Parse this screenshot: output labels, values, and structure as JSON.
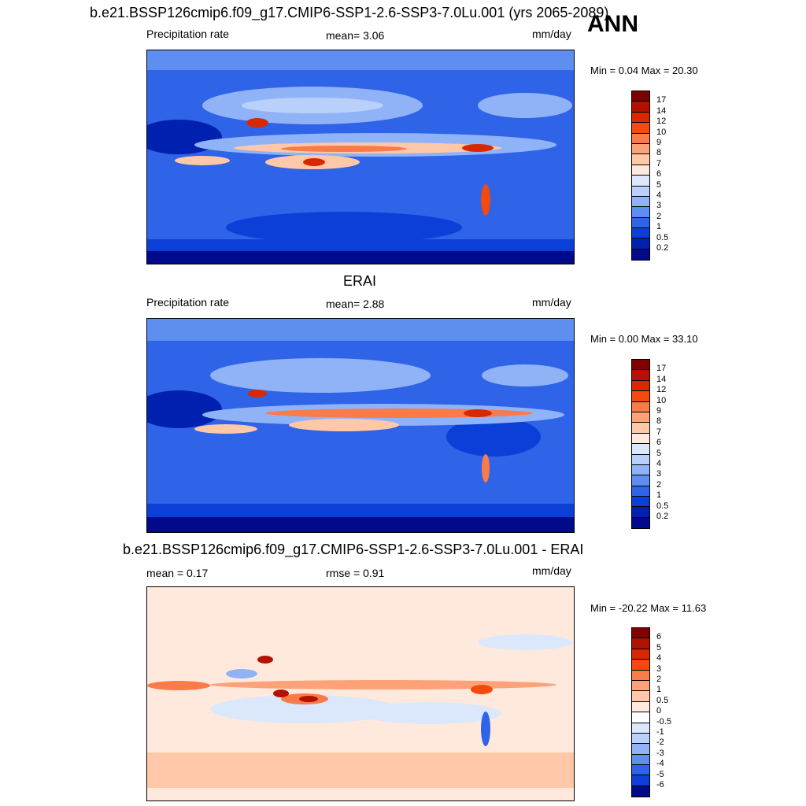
{
  "panel1": {
    "title": "b.e21.BSSP126cmip6.f09_g17.CMIP6-SSP1-2.6-SSP3-7.0Lu.001 (yrs 2065-2089)",
    "season": "ANN",
    "left": "Precipitation rate",
    "center": "mean=   3.06",
    "units": "mm/day",
    "minmax": "Min =   0.04 Max =  20.30"
  },
  "panel2": {
    "title": "ERAI",
    "left": "Precipitation rate",
    "center": "mean=   2.88",
    "units": "mm/day",
    "minmax": "Min =   0.00 Max =  33.10"
  },
  "panel3": {
    "title": "b.e21.BSSP126cmip6.f09_g17.CMIP6-SSP1-2.6-SSP3-7.0Lu.001 - ERAI",
    "left": "mean =   0.17",
    "center": "rmse =   0.91",
    "units": "mm/day",
    "minmax": "Min = -20.22 Max =  11.63"
  },
  "precip_levels": [
    "17",
    "14",
    "12",
    "10",
    "9",
    "8",
    "7",
    "6",
    "5",
    "4",
    "3",
    "2",
    "1",
    "0.5",
    "0.2"
  ],
  "precip_colors": [
    "#7f0000",
    "#b31200",
    "#d92800",
    "#f24a0f",
    "#fa7b4a",
    "#fda278",
    "#ffc8a8",
    "#ffe9dc",
    "#dbe8fb",
    "#b9d1fa",
    "#8fb3f6",
    "#5e8ef0",
    "#2f63e8",
    "#0b3fd8",
    "#0020b0",
    "#000a8a"
  ],
  "diff_levels": [
    "6",
    "5",
    "4",
    "3",
    "2",
    "1",
    "0.5",
    "0",
    "-0.5",
    "-1",
    "-2",
    "-3",
    "-4",
    "-5",
    "-6"
  ],
  "diff_colors": [
    "#7f0000",
    "#b31200",
    "#d92800",
    "#f24a0f",
    "#fa7b4a",
    "#fda278",
    "#ffc8a8",
    "#ffe9dc",
    "#ffffff",
    "#dbe8fb",
    "#b9d1fa",
    "#8fb3f6",
    "#5e8ef0",
    "#2f63e8",
    "#0b3fd8",
    "#000a8a"
  ]
}
